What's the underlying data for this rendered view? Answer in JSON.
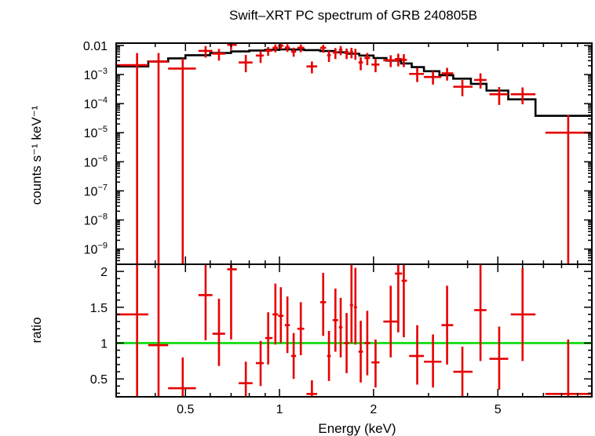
{
  "chart_data": [
    {
      "type": "scatter",
      "title": "Swift–XRT PC spectrum of GRB 240805B",
      "ylabel": "counts s⁻¹ keV⁻¹",
      "xscale": "log",
      "yscale": "log",
      "xlim": [
        0.3,
        10
      ],
      "ylim": [
        3e-10,
        0.012
      ],
      "yticks": [
        {
          "v": 0.01,
          "label": "0.01",
          "base": "",
          "exp": ""
        },
        {
          "v": 0.001,
          "label": "",
          "base": "10",
          "exp": "−3"
        },
        {
          "v": 0.0001,
          "label": "",
          "base": "10",
          "exp": "−4"
        },
        {
          "v": 1e-05,
          "label": "",
          "base": "10",
          "exp": "−5"
        },
        {
          "v": 1e-06,
          "label": "",
          "base": "10",
          "exp": "−6"
        },
        {
          "v": 1e-07,
          "label": "",
          "base": "10",
          "exp": "−7"
        },
        {
          "v": 1e-08,
          "label": "",
          "base": "10",
          "exp": "−8"
        },
        {
          "v": 1e-09,
          "label": "",
          "base": "10",
          "exp": "−9"
        }
      ],
      "points": [
        {
          "x": 0.35,
          "xlo": 0.3,
          "xhi": 0.38,
          "y": 0.0021,
          "ylo": 3e-10,
          "yhi": 0.0055
        },
        {
          "x": 0.41,
          "xlo": 0.38,
          "xhi": 0.44,
          "y": 0.0028,
          "ylo": 3e-10,
          "yhi": 0.0055
        },
        {
          "x": 0.49,
          "xlo": 0.44,
          "xhi": 0.54,
          "y": 0.0016,
          "ylo": 3e-10,
          "yhi": 0.0036
        },
        {
          "x": 0.58,
          "xlo": 0.55,
          "xhi": 0.61,
          "y": 0.0065,
          "ylo": 0.0038,
          "yhi": 0.0095
        },
        {
          "x": 0.64,
          "xlo": 0.61,
          "xhi": 0.67,
          "y": 0.0052,
          "ylo": 0.003,
          "yhi": 0.0076
        },
        {
          "x": 0.7,
          "xlo": 0.68,
          "xhi": 0.73,
          "y": 0.0105,
          "ylo": 0.007,
          "yhi": 0.0125
        },
        {
          "x": 0.78,
          "xlo": 0.74,
          "xhi": 0.82,
          "y": 0.0026,
          "ylo": 0.0012,
          "yhi": 0.0047
        },
        {
          "x": 0.87,
          "xlo": 0.84,
          "xhi": 0.89,
          "y": 0.0045,
          "ylo": 0.0025,
          "yhi": 0.0066
        },
        {
          "x": 0.92,
          "xlo": 0.9,
          "xhi": 0.95,
          "y": 0.0066,
          "ylo": 0.0044,
          "yhi": 0.0088
        },
        {
          "x": 0.97,
          "xlo": 0.95,
          "xhi": 0.99,
          "y": 0.0083,
          "ylo": 0.0058,
          "yhi": 0.0108
        },
        {
          "x": 1.01,
          "xlo": 0.99,
          "xhi": 1.03,
          "y": 0.0098,
          "ylo": 0.0072,
          "yhi": 0.0122
        },
        {
          "x": 1.06,
          "xlo": 1.04,
          "xhi": 1.08,
          "y": 0.0085,
          "ylo": 0.006,
          "yhi": 0.011
        },
        {
          "x": 1.11,
          "xlo": 1.09,
          "xhi": 1.13,
          "y": 0.0061,
          "ylo": 0.0041,
          "yhi": 0.0084
        },
        {
          "x": 1.17,
          "xlo": 1.14,
          "xhi": 1.2,
          "y": 0.0083,
          "ylo": 0.0058,
          "yhi": 0.0108
        },
        {
          "x": 1.27,
          "xlo": 1.22,
          "xhi": 1.32,
          "y": 0.0019,
          "ylo": 0.0011,
          "yhi": 0.0028
        },
        {
          "x": 1.38,
          "xlo": 1.35,
          "xhi": 1.41,
          "y": 0.0083,
          "ylo": 0.0056,
          "yhi": 0.0105
        },
        {
          "x": 1.44,
          "xlo": 1.42,
          "xhi": 1.46,
          "y": 0.0046,
          "ylo": 0.0027,
          "yhi": 0.0066
        },
        {
          "x": 1.51,
          "xlo": 1.48,
          "xhi": 1.54,
          "y": 0.0057,
          "ylo": 0.0034,
          "yhi": 0.0081
        },
        {
          "x": 1.57,
          "xlo": 1.55,
          "xhi": 1.59,
          "y": 0.0071,
          "ylo": 0.0046,
          "yhi": 0.0095
        },
        {
          "x": 1.64,
          "xlo": 1.61,
          "xhi": 1.67,
          "y": 0.0055,
          "ylo": 0.0034,
          "yhi": 0.0078
        },
        {
          "x": 1.7,
          "xlo": 1.68,
          "xhi": 1.72,
          "y": 0.0059,
          "ylo": 0.0036,
          "yhi": 0.0083
        },
        {
          "x": 1.75,
          "xlo": 1.73,
          "xhi": 1.77,
          "y": 0.0053,
          "ylo": 0.0032,
          "yhi": 0.0076
        },
        {
          "x": 1.82,
          "xlo": 1.79,
          "xhi": 1.85,
          "y": 0.0026,
          "ylo": 0.0014,
          "yhi": 0.0039
        },
        {
          "x": 1.91,
          "xlo": 1.87,
          "xhi": 1.95,
          "y": 0.0037,
          "ylo": 0.0021,
          "yhi": 0.0055
        },
        {
          "x": 2.03,
          "xlo": 1.97,
          "xhi": 2.09,
          "y": 0.0022,
          "ylo": 0.0012,
          "yhi": 0.0034
        },
        {
          "x": 2.27,
          "xlo": 2.15,
          "xhi": 2.4,
          "y": 0.0031,
          "ylo": 0.0018,
          "yhi": 0.0046
        },
        {
          "x": 2.4,
          "xlo": 2.34,
          "xhi": 2.47,
          "y": 0.0034,
          "ylo": 0.0019,
          "yhi": 0.0052
        },
        {
          "x": 2.5,
          "xlo": 2.46,
          "xhi": 2.56,
          "y": 0.0032,
          "ylo": 0.0018,
          "yhi": 0.005
        },
        {
          "x": 2.76,
          "xlo": 2.6,
          "xhi": 2.9,
          "y": 0.00105,
          "ylo": 0.00055,
          "yhi": 0.0017
        },
        {
          "x": 3.1,
          "xlo": 2.9,
          "xhi": 3.3,
          "y": 0.00082,
          "ylo": 0.00045,
          "yhi": 0.0013
        },
        {
          "x": 3.44,
          "xlo": 3.3,
          "xhi": 3.6,
          "y": 0.0011,
          "ylo": 0.00062,
          "yhi": 0.0017
        },
        {
          "x": 3.85,
          "xlo": 3.6,
          "xhi": 4.15,
          "y": 0.00038,
          "ylo": 0.00018,
          "yhi": 0.00065
        },
        {
          "x": 4.4,
          "xlo": 4.2,
          "xhi": 4.6,
          "y": 0.00065,
          "ylo": 0.00033,
          "yhi": 0.0011
        },
        {
          "x": 5.05,
          "xlo": 4.7,
          "xhi": 5.4,
          "y": 0.00021,
          "ylo": 9e-05,
          "yhi": 0.00037
        },
        {
          "x": 6.0,
          "xlo": 5.5,
          "xhi": 6.6,
          "y": 0.00021,
          "ylo": 9.5e-05,
          "yhi": 0.00036
        },
        {
          "x": 8.4,
          "xlo": 7.1,
          "xhi": 10.0,
          "y": 1e-05,
          "ylo": 3e-10,
          "yhi": 4e-05
        }
      ],
      "model_steps": [
        {
          "x0": 0.3,
          "x1": 0.38,
          "y": 0.0019
        },
        {
          "x0": 0.38,
          "x1": 0.44,
          "y": 0.0028
        },
        {
          "x0": 0.44,
          "x1": 0.5,
          "y": 0.0036
        },
        {
          "x0": 0.5,
          "x1": 0.6,
          "y": 0.0046
        },
        {
          "x0": 0.6,
          "x1": 0.7,
          "y": 0.0055
        },
        {
          "x0": 0.7,
          "x1": 0.8,
          "y": 0.0062
        },
        {
          "x0": 0.8,
          "x1": 0.9,
          "y": 0.0067
        },
        {
          "x0": 0.9,
          "x1": 1.0,
          "y": 0.0071
        },
        {
          "x0": 1.0,
          "x1": 1.1,
          "y": 0.0073
        },
        {
          "x0": 1.1,
          "x1": 1.2,
          "y": 0.0072
        },
        {
          "x0": 1.2,
          "x1": 1.35,
          "y": 0.0069
        },
        {
          "x0": 1.35,
          "x1": 1.5,
          "y": 0.0064
        },
        {
          "x0": 1.5,
          "x1": 1.65,
          "y": 0.0058
        },
        {
          "x0": 1.65,
          "x1": 1.8,
          "y": 0.0052
        },
        {
          "x0": 1.8,
          "x1": 2.0,
          "y": 0.0045
        },
        {
          "x0": 2.0,
          "x1": 2.2,
          "y": 0.0037
        },
        {
          "x0": 2.2,
          "x1": 2.45,
          "y": 0.003
        },
        {
          "x0": 2.45,
          "x1": 2.65,
          "y": 0.0024
        },
        {
          "x0": 2.65,
          "x1": 2.9,
          "y": 0.0018
        },
        {
          "x0": 2.9,
          "x1": 3.25,
          "y": 0.0013
        },
        {
          "x0": 3.25,
          "x1": 3.6,
          "y": 0.00095
        },
        {
          "x0": 3.6,
          "x1": 4.1,
          "y": 0.00072
        },
        {
          "x0": 4.1,
          "x1": 4.6,
          "y": 0.00048
        },
        {
          "x0": 4.6,
          "x1": 5.4,
          "y": 0.00028
        },
        {
          "x0": 5.4,
          "x1": 6.6,
          "y": 0.00014
        },
        {
          "x0": 6.6,
          "x1": 8.0,
          "y": 3.8e-05
        },
        {
          "x0": 8.0,
          "x1": 10.0,
          "y": 3.8e-05
        }
      ]
    },
    {
      "type": "scatter",
      "xlabel": "Energy (keV)",
      "ylabel": "ratio",
      "xscale": "log",
      "xlim": [
        0.3,
        10
      ],
      "ylim": [
        0.25,
        2.1
      ],
      "xticks": [
        {
          "v": 0.5,
          "label": "0.5"
        },
        {
          "v": 1,
          "label": "1"
        },
        {
          "v": 2,
          "label": "2"
        },
        {
          "v": 5,
          "label": "5"
        }
      ],
      "yticks": [
        {
          "v": 0.5,
          "label": "0.5"
        },
        {
          "v": 1,
          "label": "1"
        },
        {
          "v": 1.5,
          "label": "1.5"
        },
        {
          "v": 2,
          "label": "2"
        }
      ],
      "reference_line": 1,
      "points": [
        {
          "x": 0.35,
          "xlo": 0.3,
          "xhi": 0.38,
          "y": 1.4,
          "ylo": 0.25,
          "yhi": 2.1
        },
        {
          "x": 0.41,
          "xlo": 0.38,
          "xhi": 0.44,
          "y": 0.97,
          "ylo": 0.25,
          "yhi": 2.1
        },
        {
          "x": 0.49,
          "xlo": 0.44,
          "xhi": 0.54,
          "y": 0.37,
          "ylo": 0.25,
          "yhi": 0.8
        },
        {
          "x": 0.58,
          "xlo": 0.55,
          "xhi": 0.61,
          "y": 1.67,
          "ylo": 1.04,
          "yhi": 2.1
        },
        {
          "x": 0.64,
          "xlo": 0.61,
          "xhi": 0.67,
          "y": 1.13,
          "ylo": 0.68,
          "yhi": 1.62
        },
        {
          "x": 0.7,
          "xlo": 0.68,
          "xhi": 0.73,
          "y": 2.03,
          "ylo": 1.05,
          "yhi": 2.1
        },
        {
          "x": 0.78,
          "xlo": 0.74,
          "xhi": 0.82,
          "y": 0.44,
          "ylo": 0.25,
          "yhi": 0.74
        },
        {
          "x": 0.87,
          "xlo": 0.84,
          "xhi": 0.89,
          "y": 0.72,
          "ylo": 0.4,
          "yhi": 1.03
        },
        {
          "x": 0.92,
          "xlo": 0.9,
          "xhi": 0.95,
          "y": 1.07,
          "ylo": 0.7,
          "yhi": 1.43
        },
        {
          "x": 0.97,
          "xlo": 0.95,
          "xhi": 0.99,
          "y": 1.4,
          "ylo": 0.98,
          "yhi": 1.83
        },
        {
          "x": 1.01,
          "xlo": 0.99,
          "xhi": 1.03,
          "y": 1.38,
          "ylo": 1.0,
          "yhi": 1.78
        },
        {
          "x": 1.06,
          "xlo": 1.04,
          "xhi": 1.08,
          "y": 1.25,
          "ylo": 0.86,
          "yhi": 1.65
        },
        {
          "x": 1.11,
          "xlo": 1.09,
          "xhi": 1.13,
          "y": 0.82,
          "ylo": 0.5,
          "yhi": 1.14
        },
        {
          "x": 1.17,
          "xlo": 1.14,
          "xhi": 1.2,
          "y": 1.2,
          "ylo": 0.83,
          "yhi": 1.57
        },
        {
          "x": 1.27,
          "xlo": 1.22,
          "xhi": 1.32,
          "y": 0.29,
          "ylo": 0.25,
          "yhi": 0.48
        },
        {
          "x": 1.38,
          "xlo": 1.35,
          "xhi": 1.41,
          "y": 1.57,
          "ylo": 1.1,
          "yhi": 1.98
        },
        {
          "x": 1.44,
          "xlo": 1.42,
          "xhi": 1.46,
          "y": 0.82,
          "ylo": 0.47,
          "yhi": 1.17
        },
        {
          "x": 1.51,
          "xlo": 1.48,
          "xhi": 1.54,
          "y": 1.32,
          "ylo": 0.88,
          "yhi": 1.76
        },
        {
          "x": 1.57,
          "xlo": 1.55,
          "xhi": 1.59,
          "y": 1.22,
          "ylo": 0.8,
          "yhi": 1.63
        },
        {
          "x": 1.64,
          "xlo": 1.61,
          "xhi": 1.67,
          "y": 1.0,
          "ylo": 0.58,
          "yhi": 1.42
        },
        {
          "x": 1.7,
          "xlo": 1.68,
          "xhi": 1.72,
          "y": 1.53,
          "ylo": 1.0,
          "yhi": 2.1
        },
        {
          "x": 1.75,
          "xlo": 1.73,
          "xhi": 1.77,
          "y": 1.5,
          "ylo": 0.98,
          "yhi": 2.05
        },
        {
          "x": 1.82,
          "xlo": 1.79,
          "xhi": 1.85,
          "y": 0.88,
          "ylo": 0.45,
          "yhi": 1.31
        },
        {
          "x": 1.91,
          "xlo": 1.87,
          "xhi": 1.95,
          "y": 1.0,
          "ylo": 0.55,
          "yhi": 1.45
        },
        {
          "x": 2.03,
          "xlo": 1.97,
          "xhi": 2.09,
          "y": 0.73,
          "ylo": 0.38,
          "yhi": 1.05
        },
        {
          "x": 2.27,
          "xlo": 2.15,
          "xhi": 2.4,
          "y": 1.3,
          "ylo": 0.8,
          "yhi": 1.8
        },
        {
          "x": 2.4,
          "xlo": 2.34,
          "xhi": 2.47,
          "y": 1.97,
          "ylo": 1.15,
          "yhi": 2.1
        },
        {
          "x": 2.5,
          "xlo": 2.46,
          "xhi": 2.56,
          "y": 1.87,
          "ylo": 1.08,
          "yhi": 2.1
        },
        {
          "x": 2.76,
          "xlo": 2.6,
          "xhi": 2.9,
          "y": 0.82,
          "ylo": 0.42,
          "yhi": 1.25
        },
        {
          "x": 3.1,
          "xlo": 2.9,
          "xhi": 3.3,
          "y": 0.74,
          "ylo": 0.38,
          "yhi": 1.12
        },
        {
          "x": 3.44,
          "xlo": 3.3,
          "xhi": 3.6,
          "y": 1.25,
          "ylo": 0.7,
          "yhi": 1.8
        },
        {
          "x": 3.85,
          "xlo": 3.6,
          "xhi": 4.15,
          "y": 0.6,
          "ylo": 0.25,
          "yhi": 0.95
        },
        {
          "x": 4.4,
          "xlo": 4.2,
          "xhi": 4.6,
          "y": 1.46,
          "ylo": 0.75,
          "yhi": 2.1
        },
        {
          "x": 5.05,
          "xlo": 4.7,
          "xhi": 5.4,
          "y": 0.78,
          "ylo": 0.35,
          "yhi": 1.23
        },
        {
          "x": 6.0,
          "xlo": 5.5,
          "xhi": 6.6,
          "y": 1.4,
          "ylo": 0.75,
          "yhi": 2.05
        },
        {
          "x": 8.4,
          "xlo": 7.1,
          "xhi": 10.0,
          "y": 0.29,
          "ylo": 0.25,
          "yhi": 1.05
        }
      ]
    }
  ]
}
